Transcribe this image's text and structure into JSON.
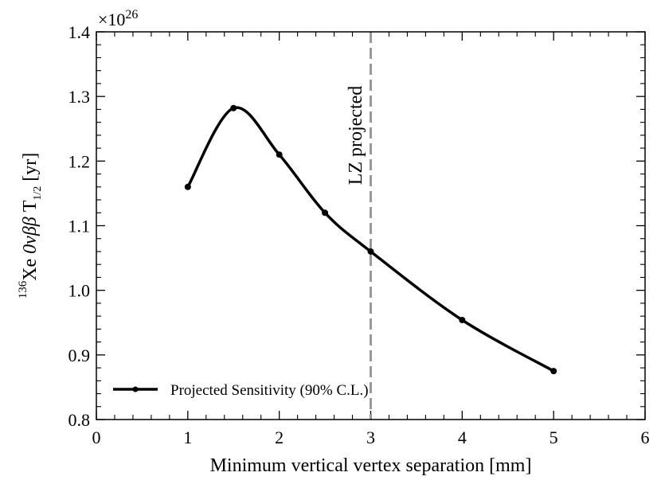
{
  "chart_data": {
    "type": "line",
    "title": "",
    "xlabel": "Minimum vertical vertex separation [mm]",
    "ylabel": {
      "isotope_mass": "136",
      "isotope_symbol": "Xe",
      "process": "0νββ",
      "quantity": "T",
      "subscript_numerator": "1",
      "subscript_denominator": "2",
      "unit": "[yr]"
    },
    "y_scale_label": {
      "base": "×10",
      "exponent": "26"
    },
    "xlim": [
      0,
      6
    ],
    "ylim": [
      0.8,
      1.4
    ],
    "x_ticks": [
      0,
      1,
      2,
      3,
      4,
      5,
      6
    ],
    "x_tick_labels": [
      "0",
      "1",
      "2",
      "3",
      "4",
      "5",
      "6"
    ],
    "y_ticks": [
      0.8,
      0.9,
      1.0,
      1.1,
      1.2,
      1.3,
      1.4
    ],
    "y_tick_labels": [
      "0.8",
      "0.9",
      "1.0",
      "1.1",
      "1.2",
      "1.3",
      "1.4"
    ],
    "series": [
      {
        "name": "Projected Sensitivity (90% C.L.)",
        "color": "#000000",
        "x": [
          1,
          1.5,
          2,
          2.5,
          3,
          4,
          5
        ],
        "y": [
          1.16,
          1.282,
          1.21,
          1.12,
          1.06,
          0.954,
          0.875
        ]
      }
    ],
    "reference_line": {
      "x": 3,
      "label": "LZ projected",
      "color": "#999999",
      "style": "dashed"
    },
    "legend": {
      "position": "bottom-left"
    }
  }
}
